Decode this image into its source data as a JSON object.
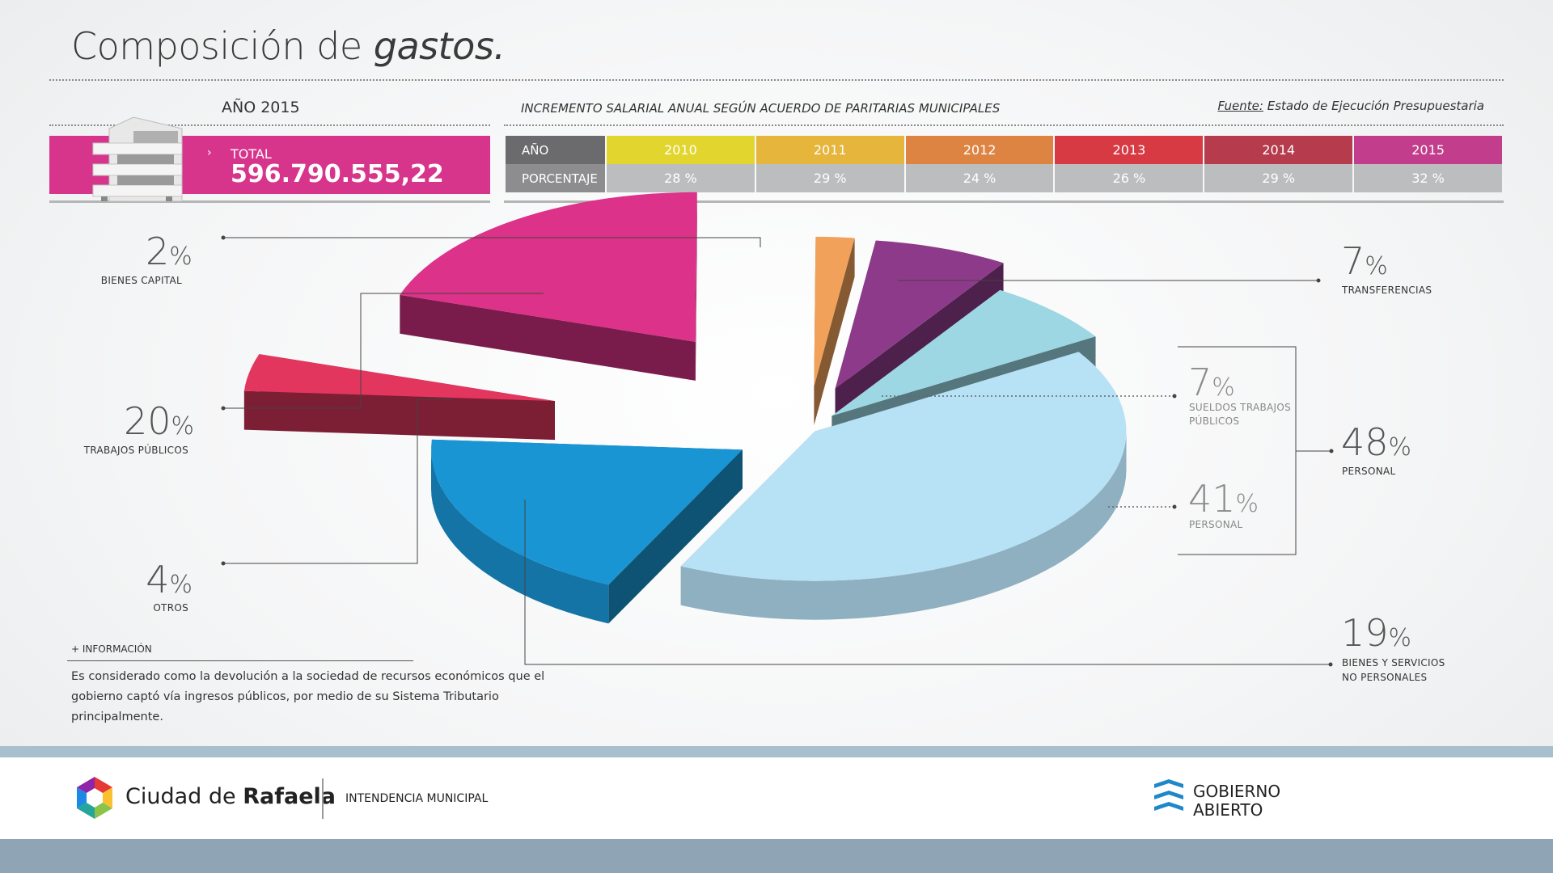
{
  "header": {
    "title_main": "Composición de",
    "title_italic": "gastos."
  },
  "year_label": "AÑO 2015",
  "increment_label": "INCREMENTO SALARIAL ANUAL SEGÚN ACUERDO DE PARITARIAS MUNICIPALES",
  "source": {
    "prefix": "Fuente:",
    "text": "Estado de Ejecución Presupuestaria"
  },
  "total": {
    "label": "TOTAL",
    "value": "596.790.555,22",
    "chevron": "›",
    "accent": "#d7358c"
  },
  "salary_table": {
    "row_labels": [
      "AÑO",
      "PORCENTAJE"
    ],
    "years": [
      "2010",
      "2011",
      "2012",
      "2013",
      "2014",
      "2015"
    ],
    "percents": [
      "28 %",
      "29 %",
      "24 %",
      "26 %",
      "29 %",
      "32 %"
    ],
    "colors": [
      "#e2d52e",
      "#e5b53c",
      "#de8443",
      "#d83a44",
      "#b63b4d",
      "#c23d8b"
    ]
  },
  "labels": {
    "bienes_capital": {
      "value": "2",
      "unit": "%",
      "caption": "BIENES CAPITAL"
    },
    "trabajos_publicos": {
      "value": "20",
      "unit": "%",
      "caption": "TRABAJOS PÚBLICOS"
    },
    "otros": {
      "value": "4",
      "unit": "%",
      "caption": "OTROS"
    },
    "transferencias": {
      "value": "7",
      "unit": "%",
      "caption": "TRANSFERENCIAS"
    },
    "sueldos": {
      "value": "7",
      "unit": "%",
      "caption1": "SUELDOS TRABAJOS",
      "caption2": "PÚBLICOS"
    },
    "personal_sub": {
      "value": "41",
      "unit": "%",
      "caption": "PERSONAL"
    },
    "personal": {
      "value": "48",
      "unit": "%",
      "caption": "PERSONAL"
    },
    "bienes_servicios": {
      "value": "19",
      "unit": "%",
      "caption1": "BIENES Y SERVICIOS",
      "caption2": "NO PERSONALES"
    }
  },
  "chart_data": {
    "type": "pie",
    "title": "Composición de gastos.",
    "categories": [
      "Bienes capital",
      "Transferencias",
      "Sueldos trabajos públicos",
      "Personal",
      "Bienes y servicios no personales",
      "Otros",
      "Trabajos públicos"
    ],
    "values": [
      2,
      7,
      7,
      41,
      19,
      4,
      20
    ],
    "colors": [
      "#f2a15a",
      "#8e3a8a",
      "#9dd7e3",
      "#b7e2f6",
      "#1a95d3",
      "#e2365f",
      "#dc3289"
    ]
  },
  "info": {
    "label": "+ INFORMACIÓN",
    "line1": "Es considerado como la devolución a la sociedad de recursos económicos que el",
    "line2": "gobierno captó vía ingresos públicos, por medio de su Sistema Tributario principalmente."
  },
  "footer": {
    "city_prefix": "Ciudad de",
    "city_bold": "Rafaela",
    "intendencia": "INTENDENCIA MUNICIPAL",
    "gob_line1": "GOBIERNO",
    "gob_line2": "ABIERTO"
  }
}
